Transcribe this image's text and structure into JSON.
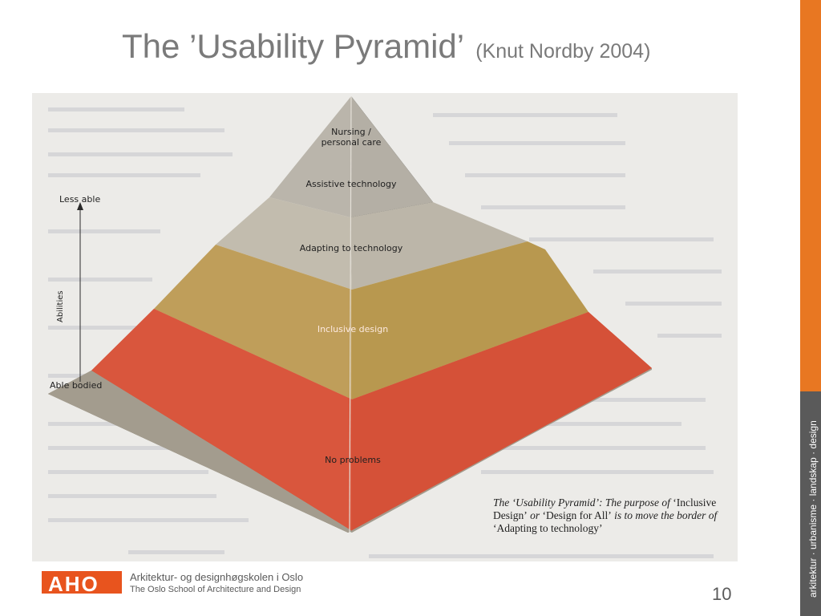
{
  "title": {
    "main": "The ’Usability Pyramid’",
    "attribution": "(Knut Nordby 2004)"
  },
  "pyramid": {
    "layers": [
      {
        "label": "Nursing / personal care",
        "color": "#b3aea4"
      },
      {
        "label": "Assistive technology",
        "color": "#b3aea4"
      },
      {
        "label": "Adapting to technology",
        "color": "#c1a45e"
      },
      {
        "label": "Inclusive design",
        "color": "#d9583f"
      },
      {
        "label": "No problems",
        "color": "#a39c8e"
      }
    ],
    "axis": {
      "top_label": "Less able",
      "bottom_label": "Able bodied",
      "name": "Abilities"
    }
  },
  "caption": {
    "part1": "The ‘Usability Pyramid’",
    "part2": ": The purpose of ",
    "part3": "‘Inclusive Design’",
    "part4": " or ",
    "part5": "‘Design for All’",
    "part6": " is to move the border of ",
    "part7": "‘Adapting to technology’"
  },
  "footer": {
    "logo_text": "AHO",
    "school_norwegian": "Arkitektur- og designhøgskolen i Oslo",
    "school_english": "The Oslo School of Architecture and Design",
    "page_number": "10"
  },
  "side_band": {
    "text": "arkitektur · urbanisme · landskap · design"
  }
}
